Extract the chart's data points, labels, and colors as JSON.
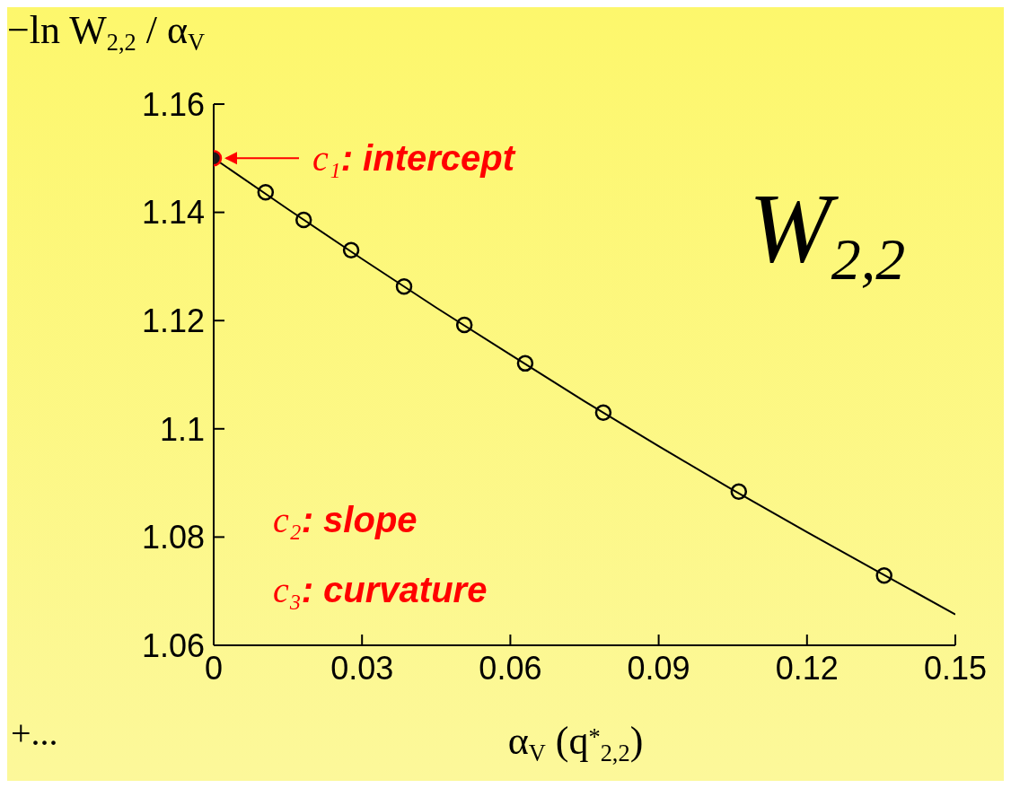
{
  "chart_data": {
    "type": "scatter",
    "ylabel": "−ln W$_{2,2}$ / α$_{V}$",
    "xlabel": "α$_{V}$ (q$^{*}$$_{2,2}$)",
    "xlim": [
      0,
      0.15
    ],
    "xticks": [
      0,
      0.03,
      0.06,
      0.09,
      0.12,
      0.15
    ],
    "ylim": [
      1.06,
      1.16
    ],
    "yticks": [
      1.06,
      1.08,
      1.1,
      1.12,
      1.14,
      1.16
    ],
    "marker": "circle",
    "series": [
      {
        "type": "line",
        "color": "#000000",
        "marker": "none",
        "x": [
          0,
          0.015,
          0.03,
          0.045,
          0.06,
          0.075,
          0.09,
          0.105,
          0.12,
          0.135,
          0.15
        ],
        "values": [
          1.15,
          1.1406,
          1.1314,
          1.1224,
          1.1137,
          1.1051,
          1.0968,
          1.0887,
          1.0809,
          1.0733,
          1.0657
        ]
      },
      {
        "color": "#000000",
        "x": [
          0.0105,
          0.0182,
          0.0278,
          0.0385,
          0.0507,
          0.063,
          0.0788,
          0.1062,
          0.1356
        ],
        "values": [
          1.1437,
          1.1386,
          1.133,
          1.1263,
          1.1192,
          1.1121,
          1.103,
          1.0884,
          1.0729
        ]
      },
      {
        "color": "#1a1a1a",
        "x": [
          0
        ],
        "values": [
          1.15
        ]
      }
    ],
    "annotations": [
      {
        "text": "c₁: intercept",
        "x": 0,
        "y": 1.15
      },
      "W$_{2,2}$",
      "c₂: slope",
      "c₃: curvature",
      "+..."
    ]
  }
}
